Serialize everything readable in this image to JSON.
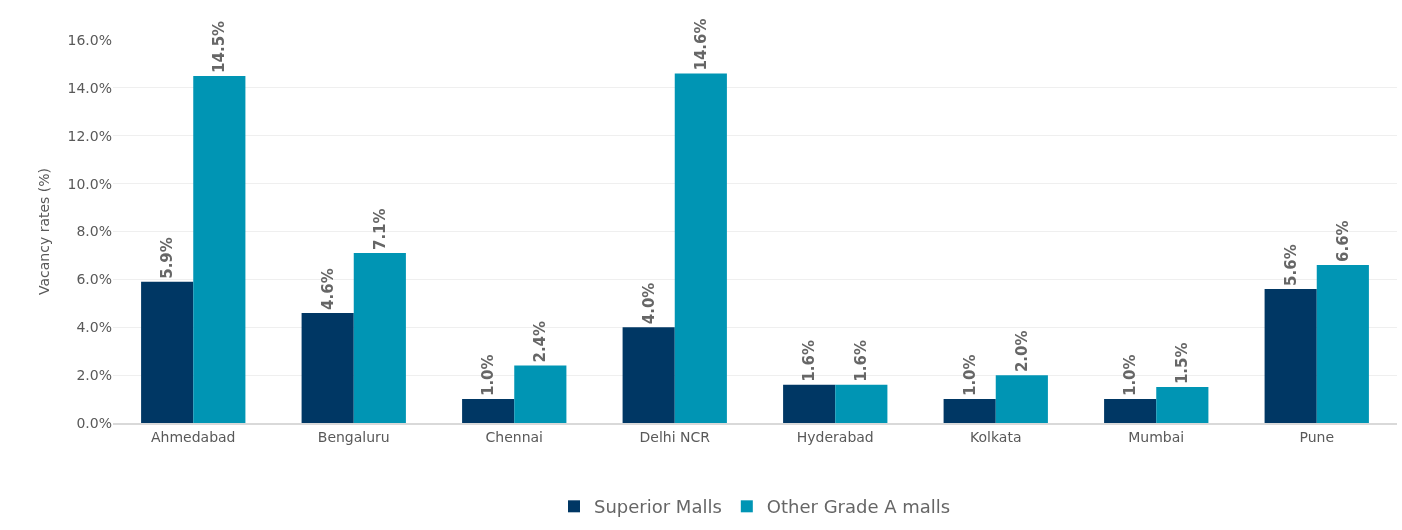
{
  "chart_data": {
    "type": "bar",
    "ylabel": "Vacancy rates (%)",
    "categories": [
      "Ahmedabad",
      "Bengaluru",
      "Chennai",
      "Delhi NCR",
      "Hyderabad",
      "Kolkata",
      "Mumbai",
      "Pune"
    ],
    "series": [
      {
        "name": "Superior Malls",
        "color": "#003764",
        "values": [
          5.9,
          4.6,
          1.0,
          4.0,
          1.6,
          1.0,
          1.0,
          5.6
        ],
        "value_labels": [
          "5.9%",
          "4.6%",
          "1.0%",
          "4.0%",
          "1.6%",
          "1.0%",
          "1.0%",
          "5.6%"
        ]
      },
      {
        "name": "Other Grade A malls",
        "color": "#0095b4",
        "values": [
          14.5,
          7.1,
          2.4,
          14.6,
          1.6,
          2.0,
          1.5,
          6.6
        ],
        "value_labels": [
          "14.5%",
          "7.1%",
          "2.4%",
          "14.6%",
          "1.6%",
          "2.0%",
          "1.5%",
          "6.6%"
        ]
      }
    ],
    "ylim": [
      0,
      16
    ],
    "yticks": [
      {
        "value": 0,
        "label": "0.0%"
      },
      {
        "value": 2,
        "label": "2.0%"
      },
      {
        "value": 4,
        "label": "4.0%"
      },
      {
        "value": 6,
        "label": "6.0%"
      },
      {
        "value": 8,
        "label": "8.0%"
      },
      {
        "value": 10,
        "label": "10.0%"
      },
      {
        "value": 12,
        "label": "12.0%"
      },
      {
        "value": 14,
        "label": "14.0%"
      },
      {
        "value": 16,
        "label": "16.0%"
      }
    ],
    "grid": "y",
    "legend": "bottom"
  }
}
